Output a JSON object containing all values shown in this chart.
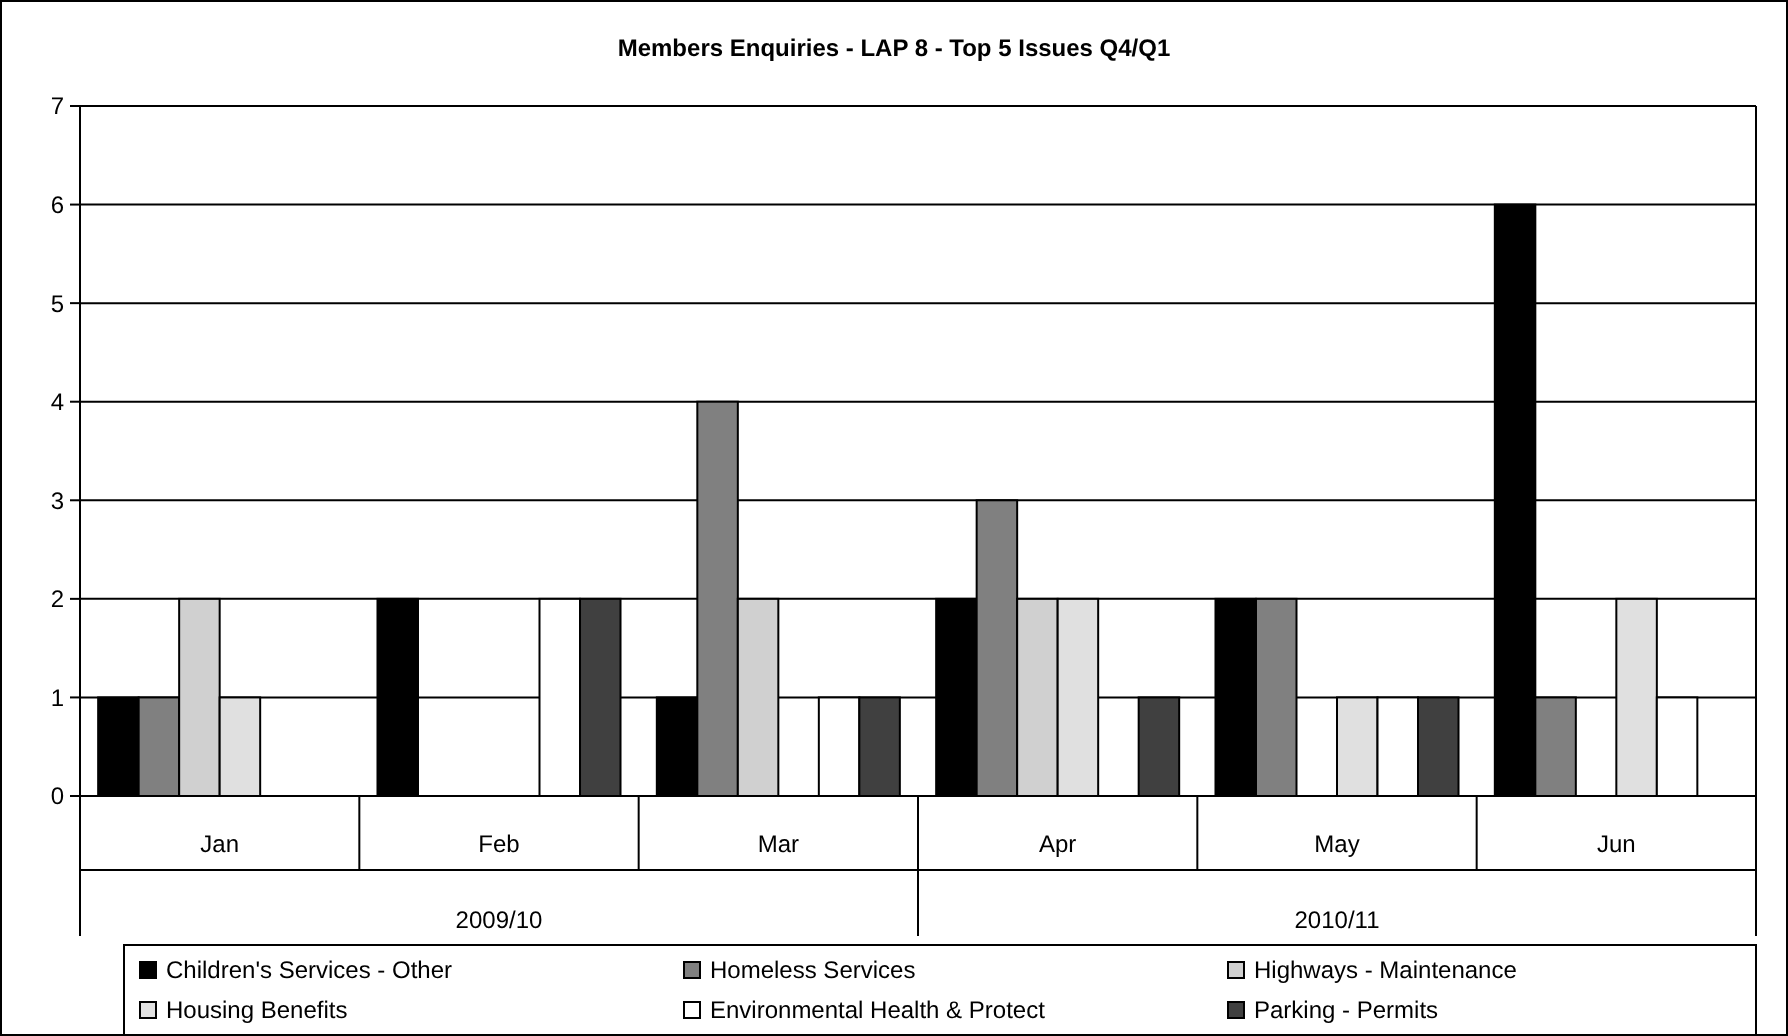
{
  "chart_data": {
    "type": "bar",
    "title": "Members Enquiries - LAP 8 - Top 5 Issues Q4/Q1",
    "categories": [
      "Jan",
      "Feb",
      "Mar",
      "Apr",
      "May",
      "Jun"
    ],
    "series": [
      {
        "name": "Children's Services - Other",
        "color": "#000000",
        "values": [
          1,
          2,
          1,
          2,
          2,
          6
        ]
      },
      {
        "name": "Homeless Services",
        "color": "#808080",
        "values": [
          1,
          0,
          4,
          3,
          2,
          1
        ]
      },
      {
        "name": "Highways - Maintenance",
        "color": "#d0d0d0",
        "values": [
          2,
          0,
          2,
          2,
          0,
          0
        ]
      },
      {
        "name": "Housing Benefits",
        "color": "#e0e0e0",
        "values": [
          1,
          0,
          0,
          2,
          1,
          2
        ]
      },
      {
        "name": "Environmental Health & Protect",
        "color": "#ffffff",
        "values": [
          0,
          2,
          1,
          0,
          1,
          1
        ]
      },
      {
        "name": "Parking - Permits",
        "color": "#404040",
        "values": [
          0,
          2,
          1,
          1,
          1,
          0
        ]
      }
    ],
    "annotations": [
      "2009/10",
      "2010/11"
    ],
    "ylim": [
      0,
      7
    ],
    "yticks": [
      0,
      1,
      2,
      3,
      4,
      5,
      6,
      7
    ],
    "grid": "y",
    "legend": "bottom"
  }
}
